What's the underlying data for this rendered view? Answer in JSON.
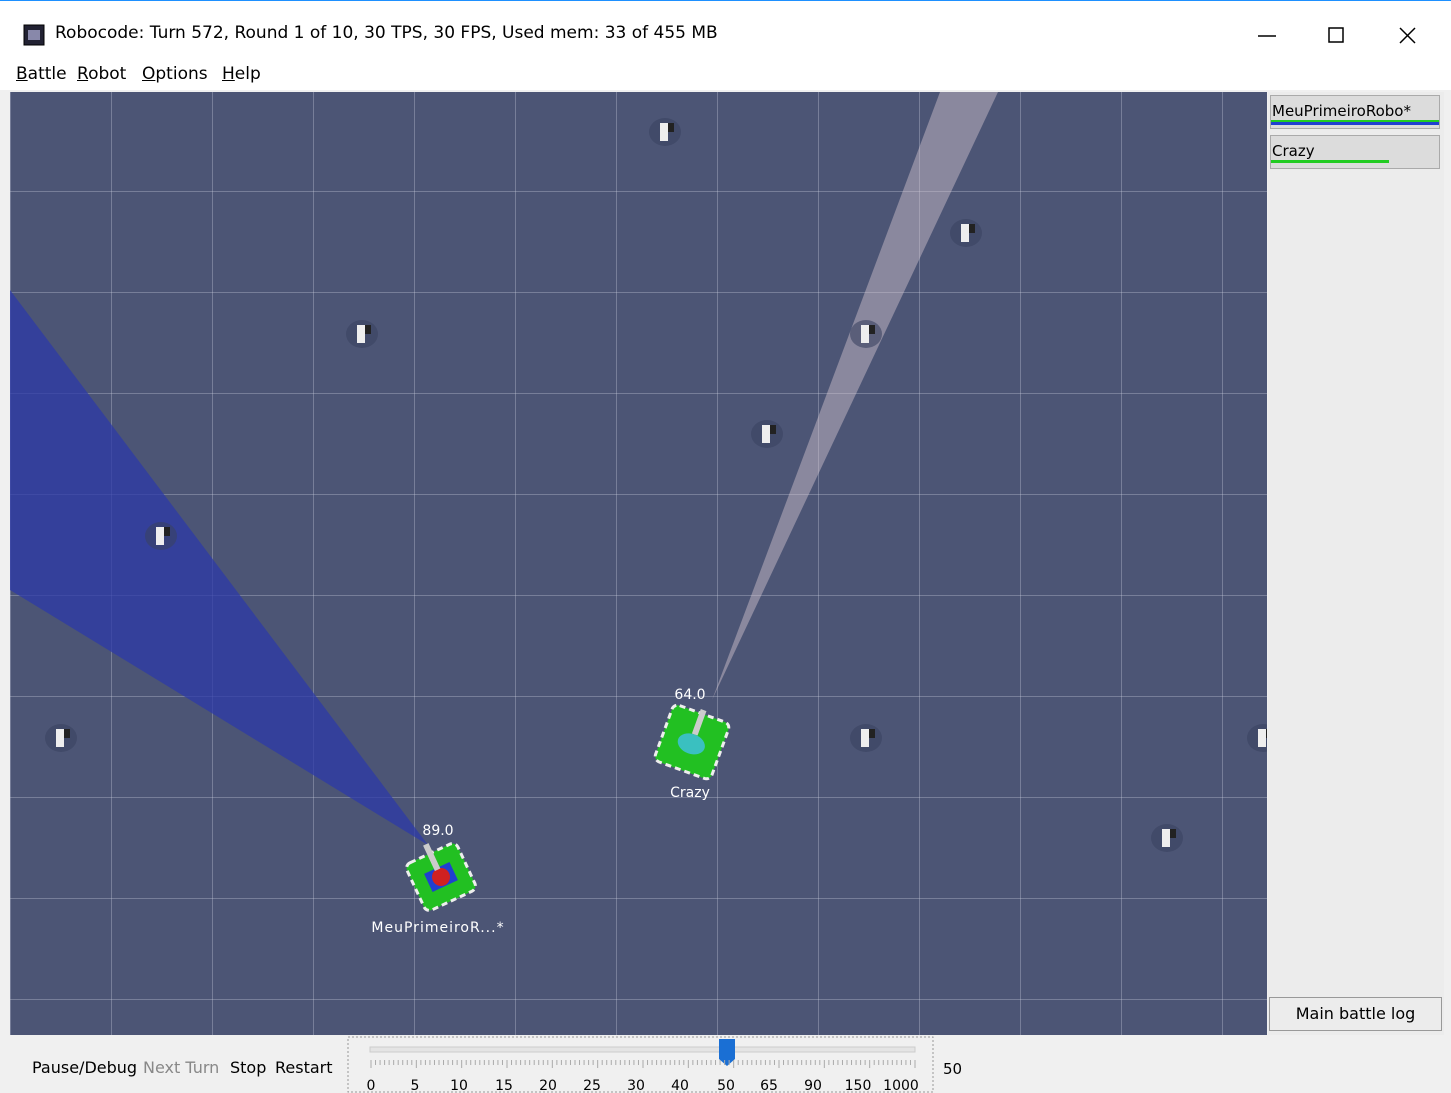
{
  "window": {
    "title": "Robocode: Turn 572, Round 1 of 10, 30 TPS, 30 FPS, Used mem: 33 of 455 MB"
  },
  "menu": [
    "Battle",
    "Robot",
    "Options",
    "Help"
  ],
  "robot_list": [
    "MeuPrimeiroRobo*",
    "Crazy"
  ],
  "log_button": "Main battle log",
  "battlefield": {
    "robots": [
      {
        "energy": "64.0",
        "name": "Crazy"
      },
      {
        "energy": "89.0",
        "name": "MeuPrimeiroR...*"
      }
    ]
  },
  "controls": {
    "buttons": [
      "Pause/Debug",
      "Next Turn",
      "Stop",
      "Restart"
    ],
    "speed_labels": [
      0,
      5,
      10,
      15,
      20,
      25,
      30,
      40,
      50,
      65,
      90,
      150,
      1000
    ],
    "speed_value": 50
  }
}
